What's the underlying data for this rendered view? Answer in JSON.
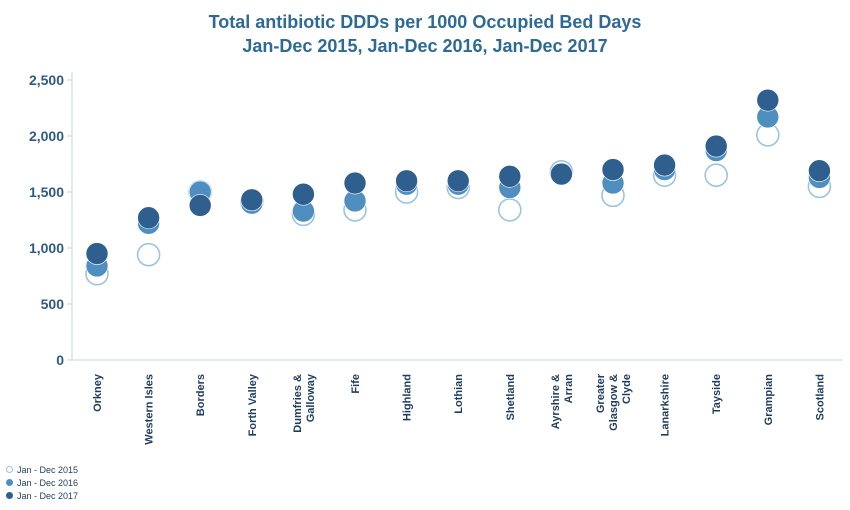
{
  "chart_data": {
    "type": "scatter",
    "title": [
      "Total antibiotic DDDs per 1000 Occupied Bed Days",
      "Jan-Dec 2015, Jan-Dec 2016, Jan-Dec 2017"
    ],
    "xlabel": "",
    "ylabel": "",
    "ylim": [
      0,
      2500
    ],
    "yticks": [
      0,
      500,
      1000,
      1500,
      2000,
      2500
    ],
    "ytick_labels": [
      "0",
      "500",
      "1,000",
      "1,500",
      "2,000",
      "2,500"
    ],
    "grid": false,
    "legend_position": "bottom-left",
    "categories": [
      [
        "Orkney"
      ],
      [
        "Western Isles"
      ],
      [
        "Borders"
      ],
      [
        "Forth Valley"
      ],
      [
        "Dumfries &",
        "Galloway"
      ],
      [
        "Fife"
      ],
      [
        "Highland"
      ],
      [
        "Lothian"
      ],
      [
        "Shetland"
      ],
      [
        "Ayrshire &",
        "Arran"
      ],
      [
        "Greater",
        "Glasgow &",
        "Clyde"
      ],
      [
        "Lanarkshire"
      ],
      [
        "Tayside"
      ],
      [
        "Grampian"
      ],
      [
        "Scotland"
      ]
    ],
    "series": [
      {
        "name": "Jan - Dec 2015",
        "style": "hollow",
        "color": "#9cc3e0",
        "values": [
          770,
          940,
          1500,
          1410,
          1300,
          1340,
          1500,
          1540,
          1340,
          1680,
          1470,
          1650,
          1650,
          2010,
          1550
        ]
      },
      {
        "name": "Jan - Dec 2016",
        "style": "filled",
        "color": "#4f8fc0",
        "values": [
          840,
          1220,
          1500,
          1400,
          1330,
          1420,
          1570,
          1570,
          1540,
          1660,
          1580,
          1700,
          1870,
          2170,
          1630
        ]
      },
      {
        "name": "Jan - Dec 2017",
        "style": "filled",
        "color": "#2f5f8e",
        "values": [
          950,
          1270,
          1380,
          1430,
          1480,
          1580,
          1600,
          1600,
          1640,
          1660,
          1700,
          1740,
          1910,
          2320,
          1690
        ]
      }
    ]
  }
}
